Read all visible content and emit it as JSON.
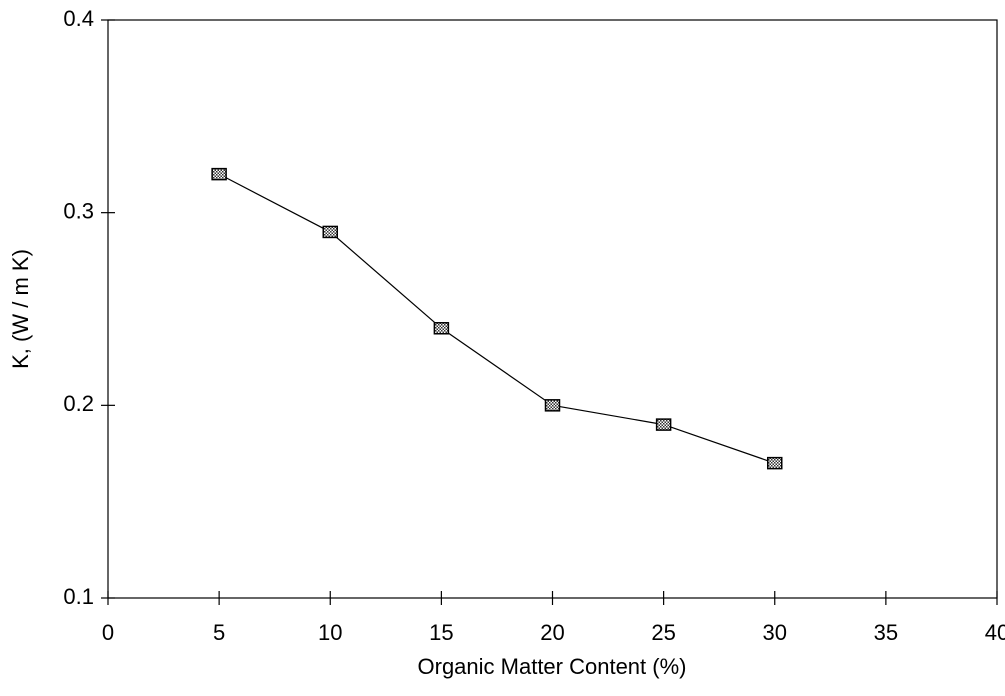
{
  "chart_data": {
    "type": "line",
    "x_label": "Organic Matter Content (%)",
    "y_label": "K, (W / m K)",
    "x": [
      5,
      10,
      15,
      20,
      25,
      30
    ],
    "values": [
      0.32,
      0.29,
      0.24,
      0.2,
      0.19,
      0.17
    ],
    "color": "#000000",
    "xlim": [
      0,
      40
    ],
    "xticks": [
      0,
      5,
      10,
      15,
      20,
      25,
      30,
      35,
      40
    ],
    "ylim": [
      0.1,
      0.4
    ],
    "yticks": [
      0.1,
      0.2,
      0.3,
      0.4
    ],
    "grid": false
  }
}
